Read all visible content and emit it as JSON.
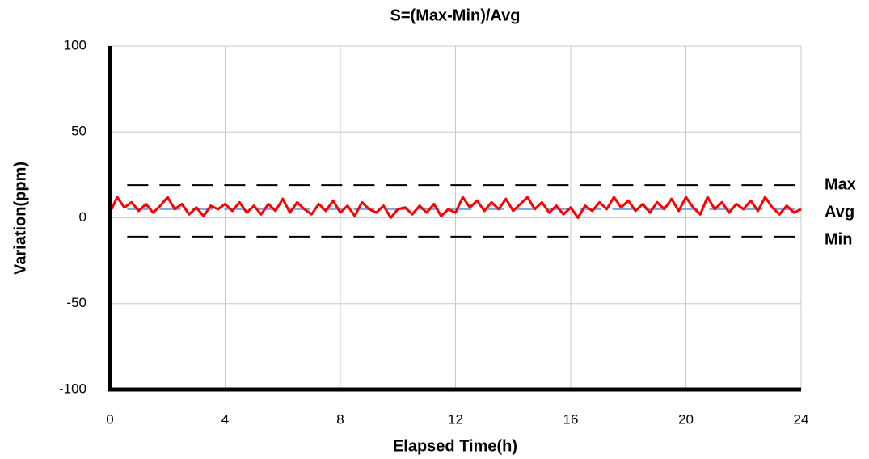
{
  "chart_data": {
    "type": "line",
    "title": "S=(Max-Min)/Avg",
    "x_label": "Elapsed Time(h)",
    "y_label": "Variation(ppm)",
    "xlim": [
      0,
      24
    ],
    "xticks": [
      0,
      4,
      8,
      12,
      16,
      20,
      24
    ],
    "ylim": [
      -100,
      100
    ],
    "yticks": [
      -100,
      -50,
      0,
      50,
      100
    ],
    "grid": true,
    "x": [
      0,
      0.25,
      0.5,
      0.75,
      1,
      1.25,
      1.5,
      1.75,
      2,
      2.25,
      2.5,
      2.75,
      3,
      3.25,
      3.5,
      3.75,
      4,
      4.25,
      4.5,
      4.75,
      5,
      5.25,
      5.5,
      5.75,
      6,
      6.25,
      6.5,
      6.75,
      7,
      7.25,
      7.5,
      7.75,
      8,
      8.25,
      8.5,
      8.75,
      9,
      9.25,
      9.5,
      9.75,
      10,
      10.25,
      10.5,
      10.75,
      11,
      11.25,
      11.5,
      11.75,
      12,
      12.25,
      12.5,
      12.75,
      13,
      13.25,
      13.5,
      13.75,
      14,
      14.25,
      14.5,
      14.75,
      15,
      15.25,
      15.5,
      15.75,
      16,
      16.25,
      16.5,
      16.75,
      17,
      17.25,
      17.5,
      17.75,
      18,
      18.25,
      18.5,
      18.75,
      19,
      19.25,
      19.5,
      19.75,
      20,
      20.25,
      20.5,
      20.75,
      21,
      21.25,
      21.5,
      21.75,
      22,
      22.25,
      22.5,
      22.75,
      23,
      23.25,
      23.5,
      23.75,
      24
    ],
    "series": [
      {
        "color": "#ff0000",
        "values": [
          3,
          12,
          6,
          9,
          4,
          8,
          3,
          7,
          12,
          5,
          8,
          2,
          6,
          1,
          7,
          5,
          8,
          4,
          9,
          3,
          7,
          2,
          8,
          4,
          11,
          3,
          9,
          5,
          2,
          8,
          4,
          10,
          3,
          7,
          1,
          9,
          5,
          3,
          7,
          0,
          5,
          6,
          2,
          7,
          3,
          8,
          1,
          5,
          3,
          12,
          6,
          10,
          4,
          9,
          5,
          11,
          4,
          8,
          12,
          5,
          9,
          3,
          7,
          2,
          6,
          0,
          7,
          4,
          9,
          5,
          12,
          6,
          10,
          4,
          8,
          3,
          9,
          5,
          11,
          4,
          12,
          6,
          2,
          12,
          5,
          9,
          3,
          8,
          5,
          10,
          4,
          12,
          6,
          2,
          7,
          3,
          5
        ]
      }
    ],
    "reference_lines": [
      {
        "label": "Max",
        "value": 19,
        "x_start": 0.6,
        "color": "#000000"
      },
      {
        "label": "Avg",
        "value": 5,
        "x_start": 0.6,
        "color": "#7aa6d8"
      },
      {
        "label": "Min",
        "value": -11,
        "x_start": 0.6,
        "color": "#000000"
      }
    ]
  }
}
